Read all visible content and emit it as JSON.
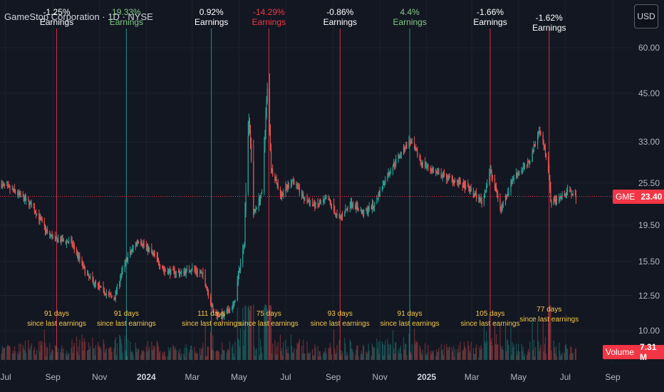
{
  "header": {
    "title": "GameStop Corporation · 1D · NYSE",
    "currency_button": "USD"
  },
  "price_tag": {
    "symbol": "GME",
    "value": "23.40"
  },
  "volume_tag": {
    "label": "Volume",
    "value": "7.31 M"
  },
  "colors": {
    "background": "#131722",
    "up": "#26a69a",
    "down": "#ef5350",
    "grid": "#1e222d",
    "earnings_line_neg": "#f23645",
    "earnings_line_pos": "#26a69a",
    "days_text": "#f5c84b"
  },
  "chart_data": {
    "type": "candlestick",
    "symbol": "GME",
    "interval": "1D",
    "exchange": "NYSE",
    "y_scale": "log",
    "y_ticks": [
      "60.00",
      "45.00",
      "33.00",
      "25.50",
      "19.50",
      "15.50",
      "12.50",
      "10.00"
    ],
    "x_ticks": [
      {
        "label": "Jul",
        "year": false
      },
      {
        "label": "Sep",
        "year": false
      },
      {
        "label": "Nov",
        "year": false
      },
      {
        "label": "2024",
        "year": true
      },
      {
        "label": "Mar",
        "year": false
      },
      {
        "label": "May",
        "year": false
      },
      {
        "label": "Jul",
        "year": false
      },
      {
        "label": "Sep",
        "year": false
      },
      {
        "label": "Nov",
        "year": false
      },
      {
        "label": "2025",
        "year": true
      },
      {
        "label": "Mar",
        "year": false
      },
      {
        "label": "May",
        "year": false
      },
      {
        "label": "Jul",
        "year": false
      },
      {
        "label": "Sep",
        "year": false
      }
    ],
    "last_price": 23.4,
    "last_volume": "7.31 M",
    "price_path": [
      [
        "2023-06-24",
        25.3
      ],
      [
        "2023-07-15",
        24.0
      ],
      [
        "2023-08-05",
        22.0
      ],
      [
        "2023-08-25",
        18.5
      ],
      [
        "2023-09-05",
        17.8
      ],
      [
        "2023-09-25",
        17.5
      ],
      [
        "2023-10-15",
        14.2
      ],
      [
        "2023-10-30",
        13.2
      ],
      [
        "2023-11-20",
        12.2
      ],
      [
        "2023-12-05",
        15.5
      ],
      [
        "2023-12-22",
        17.8
      ],
      [
        "2024-01-10",
        16.2
      ],
      [
        "2024-01-25",
        14.6
      ],
      [
        "2024-02-15",
        14.4
      ],
      [
        "2024-03-01",
        14.8
      ],
      [
        "2024-03-15",
        14.2
      ],
      [
        "2024-03-28",
        11.3
      ],
      [
        "2024-04-10",
        10.9
      ],
      [
        "2024-04-25",
        11.8
      ],
      [
        "2024-05-08",
        17.5
      ],
      [
        "2024-05-14",
        38.0
      ],
      [
        "2024-05-20",
        21.0
      ],
      [
        "2024-06-01",
        24.0
      ],
      [
        "2024-06-07",
        46.0
      ],
      [
        "2024-06-12",
        28.0
      ],
      [
        "2024-06-25",
        23.5
      ],
      [
        "2024-07-10",
        26.0
      ],
      [
        "2024-07-25",
        23.0
      ],
      [
        "2024-08-10",
        22.0
      ],
      [
        "2024-08-25",
        23.0
      ],
      [
        "2024-09-08",
        20.2
      ],
      [
        "2024-09-25",
        22.5
      ],
      [
        "2024-10-10",
        21.0
      ],
      [
        "2024-10-25",
        22.2
      ],
      [
        "2024-11-10",
        26.5
      ],
      [
        "2024-11-25",
        30.0
      ],
      [
        "2024-12-10",
        33.2
      ],
      [
        "2024-12-25",
        29.0
      ],
      [
        "2025-01-15",
        27.0
      ],
      [
        "2025-02-05",
        26.0
      ],
      [
        "2025-02-25",
        24.5
      ],
      [
        "2025-03-15",
        22.5
      ],
      [
        "2025-03-25",
        27.5
      ],
      [
        "2025-04-08",
        21.5
      ],
      [
        "2025-04-25",
        26.5
      ],
      [
        "2025-05-15",
        29.0
      ],
      [
        "2025-05-28",
        35.5
      ],
      [
        "2025-06-08",
        29.5
      ],
      [
        "2025-06-12",
        22.5
      ],
      [
        "2025-06-25",
        23.3
      ],
      [
        "2025-07-05",
        24.2
      ],
      [
        "2025-07-15",
        23.4
      ]
    ],
    "earnings": [
      {
        "date": "2023-09-06",
        "change": "-1.25%",
        "label": "Earnings",
        "tone": "pos",
        "line": "neg",
        "days": "91 days",
        "days_label": "since last earnings"
      },
      {
        "date": "2023-12-06",
        "change": "19.33%",
        "label": "Earnings",
        "tone": "green",
        "line": "pos",
        "days": "91 days",
        "days_label": "since last earnings"
      },
      {
        "date": "2024-03-26",
        "change": "0.92%",
        "label": "Earnings",
        "tone": "pos",
        "line": "pos",
        "days": "111 days",
        "days_label": "since last earnings"
      },
      {
        "date": "2024-06-09",
        "change": "-14.29%",
        "label": "Earnings",
        "tone": "neg",
        "line": "neg",
        "days": "75 days",
        "days_label": "since last earnings"
      },
      {
        "date": "2024-09-10",
        "change": "-0.86%",
        "label": "Earnings",
        "tone": "pos",
        "line": "neg",
        "days": "93 days",
        "days_label": "since last earnings"
      },
      {
        "date": "2024-12-10",
        "change": "4.4%",
        "label": "Earnings",
        "tone": "green",
        "line": "pos",
        "days": "91 days",
        "days_label": "since last earnings"
      },
      {
        "date": "2025-03-25",
        "change": "-1.66%",
        "label": "Earnings",
        "tone": "pos",
        "line": "neg",
        "days": "105 days",
        "days_label": "since last earnings"
      },
      {
        "date": "2025-06-10",
        "change": "-1.62%",
        "label": "Earnings",
        "tone": "pos",
        "line": "neg",
        "days": "77 days",
        "days_label": "since last earnings"
      }
    ]
  }
}
